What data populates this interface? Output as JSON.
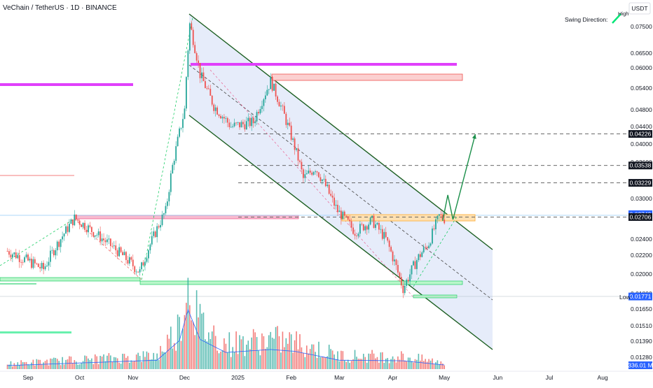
{
  "header": {
    "title": "VeChain / TetherUS · 1D · BINANCE",
    "currency": "USDT",
    "swing_label": "Swing Direction:",
    "swing_value": "High"
  },
  "colors": {
    "bull": "#26a69a",
    "bear": "#ef5350",
    "channel": "#1b5e20",
    "channel_fill": "#dbe4f7",
    "magenta": "#e040fb",
    "green_zone": "#00c853",
    "orange_zone": "#ffb74d",
    "blue_badge": "#2962ff"
  },
  "chart_data": {
    "type": "candlestick",
    "symbol": "VETUSDT",
    "timeframe": "1D",
    "y_ticks": [
      "0.07500",
      "0.06500",
      "0.06000",
      "0.05400",
      "0.04800",
      "0.04400",
      "0.04000",
      "0.03600",
      "0.03200",
      "0.03000",
      "0.02700",
      "0.02400",
      "0.02200",
      "0.02000",
      "0.01800",
      "0.01650",
      "0.01510",
      "0.01390",
      "0.01280"
    ],
    "y_tick_values": [
      0.075,
      0.065,
      0.06,
      0.054,
      0.048,
      0.044,
      0.04,
      0.036,
      0.032,
      0.03,
      0.027,
      0.024,
      0.022,
      0.02,
      0.018,
      0.0165,
      0.0151,
      0.0139,
      0.0128
    ],
    "x_ticks": [
      "Sep",
      "Oct",
      "Nov",
      "Dec",
      "2025",
      "Feb",
      "Mar",
      "Apr",
      "May",
      "Jun",
      "Jul",
      "Aug"
    ],
    "x_tick_dates": [
      "2024-09-01",
      "2024-10-01",
      "2024-11-01",
      "2024-12-01",
      "2025-01-01",
      "2025-02-01",
      "2025-03-01",
      "2025-04-01",
      "2025-05-01",
      "2025-06-01",
      "2025-07-01",
      "2025-08-01"
    ],
    "price_labels": [
      {
        "text": "0.04226",
        "value": 0.04226,
        "style": "dark"
      },
      {
        "text": "0.03538",
        "value": 0.03538,
        "style": "dark"
      },
      {
        "text": "0.03229",
        "value": 0.03229,
        "style": "dark"
      },
      {
        "text": "0.02749",
        "value": 0.02749,
        "style": "blue"
      },
      {
        "text": "0.02706",
        "value": 0.02706,
        "style": "dark"
      },
      {
        "text": "0.01771",
        "value": 0.01771,
        "style": "blue"
      }
    ],
    "low_label": "Low",
    "volume_label": "336.01 M",
    "target_levels": [
      0.04226,
      0.03538,
      0.03229,
      0.02706
    ],
    "channel": {
      "upper": [
        {
          "date": "2024-12-01",
          "price": 0.078
        },
        {
          "date": "2025-05-26",
          "price": 0.0229
        }
      ],
      "lower": [
        {
          "date": "2024-12-01",
          "price": 0.0465
        },
        {
          "date": "2025-05-26",
          "price": 0.0135
        }
      ]
    },
    "projection": [
      {
        "date": "2025-04-30",
        "price": 0.0265
      },
      {
        "date": "2025-05-03",
        "price": 0.0305
      },
      {
        "date": "2025-05-06",
        "price": 0.0267
      },
      {
        "date": "2025-05-19",
        "price": 0.0422
      }
    ],
    "candles_keypoints": [
      {
        "date": "2024-08-20",
        "price": 0.0225
      },
      {
        "date": "2024-09-10",
        "price": 0.0205
      },
      {
        "date": "2024-09-28",
        "price": 0.0269
      },
      {
        "date": "2024-11-05",
        "price": 0.0202
      },
      {
        "date": "2024-11-20",
        "price": 0.028
      },
      {
        "date": "2024-12-01",
        "price": 0.048
      },
      {
        "date": "2024-12-04",
        "price": 0.076
      },
      {
        "date": "2024-12-10",
        "price": 0.058
      },
      {
        "date": "2024-12-18",
        "price": 0.049
      },
      {
        "date": "2024-12-28",
        "price": 0.044
      },
      {
        "date": "2025-01-10",
        "price": 0.045
      },
      {
        "date": "2025-01-20",
        "price": 0.056
      },
      {
        "date": "2025-01-31",
        "price": 0.043
      },
      {
        "date": "2025-02-08",
        "price": 0.033
      },
      {
        "date": "2025-02-15",
        "price": 0.035
      },
      {
        "date": "2025-02-28",
        "price": 0.028
      },
      {
        "date": "2025-03-10",
        "price": 0.025
      },
      {
        "date": "2025-03-20",
        "price": 0.0265
      },
      {
        "date": "2025-03-28",
        "price": 0.024
      },
      {
        "date": "2025-04-07",
        "price": 0.0185
      },
      {
        "date": "2025-04-15",
        "price": 0.0215
      },
      {
        "date": "2025-04-22",
        "price": 0.0235
      },
      {
        "date": "2025-04-28",
        "price": 0.0272
      },
      {
        "date": "2025-05-01",
        "price": 0.0268
      }
    ],
    "volume_keypoints": [
      {
        "date": "2024-08-20",
        "value": 0.06
      },
      {
        "date": "2024-11-15",
        "value": 0.15
      },
      {
        "date": "2024-11-28",
        "value": 0.48
      },
      {
        "date": "2024-12-03",
        "value": 1.0
      },
      {
        "date": "2024-12-10",
        "value": 0.5
      },
      {
        "date": "2024-12-25",
        "value": 0.28
      },
      {
        "date": "2025-01-20",
        "value": 0.33
      },
      {
        "date": "2025-02-03",
        "value": 0.3
      },
      {
        "date": "2025-03-01",
        "value": 0.15
      },
      {
        "date": "2025-04-07",
        "value": 0.14
      },
      {
        "date": "2025-05-01",
        "value": 0.07
      }
    ]
  }
}
